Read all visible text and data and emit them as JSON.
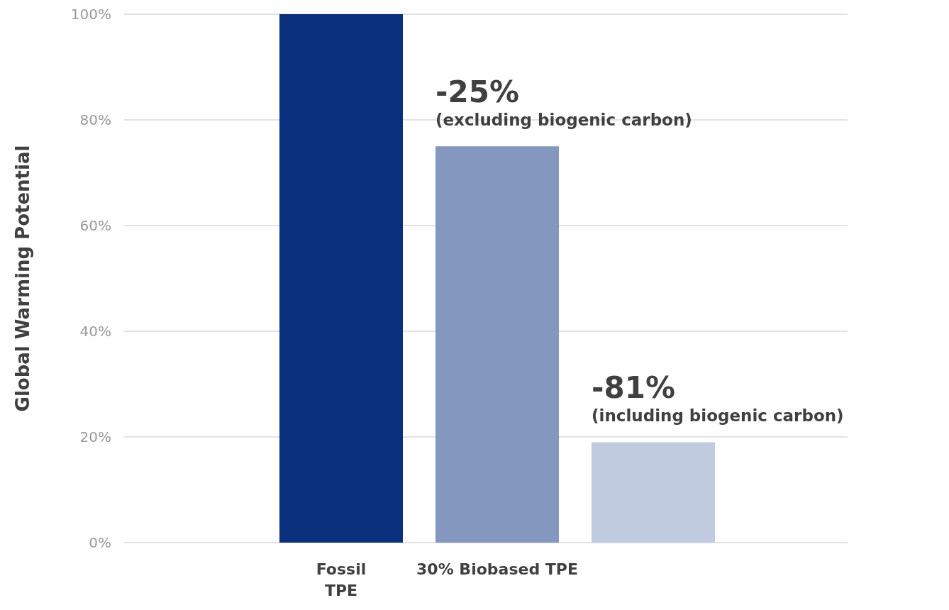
{
  "chart_data": {
    "type": "bar",
    "ylabel": "Global Warming Potential",
    "categories": [
      "Fossil\nTPE",
      "30% Biobased TPE",
      null
    ],
    "values": [
      100,
      75,
      19
    ],
    "colors": [
      "#0a2f7c",
      "#8497bf",
      "#c0cbe0"
    ],
    "ylim": [
      0,
      100
    ],
    "yticks": [
      {
        "value": 0,
        "label": "0%"
      },
      {
        "value": 20,
        "label": "20%"
      },
      {
        "value": 40,
        "label": "40%"
      },
      {
        "value": 60,
        "label": "60%"
      },
      {
        "value": 80,
        "label": "80%"
      },
      {
        "value": 100,
        "label": "100%"
      }
    ],
    "grid": "y",
    "annotations": [
      "-25%\n(excluding biogenic carbon)",
      "-81%\n(including biogenic carbon)"
    ]
  }
}
